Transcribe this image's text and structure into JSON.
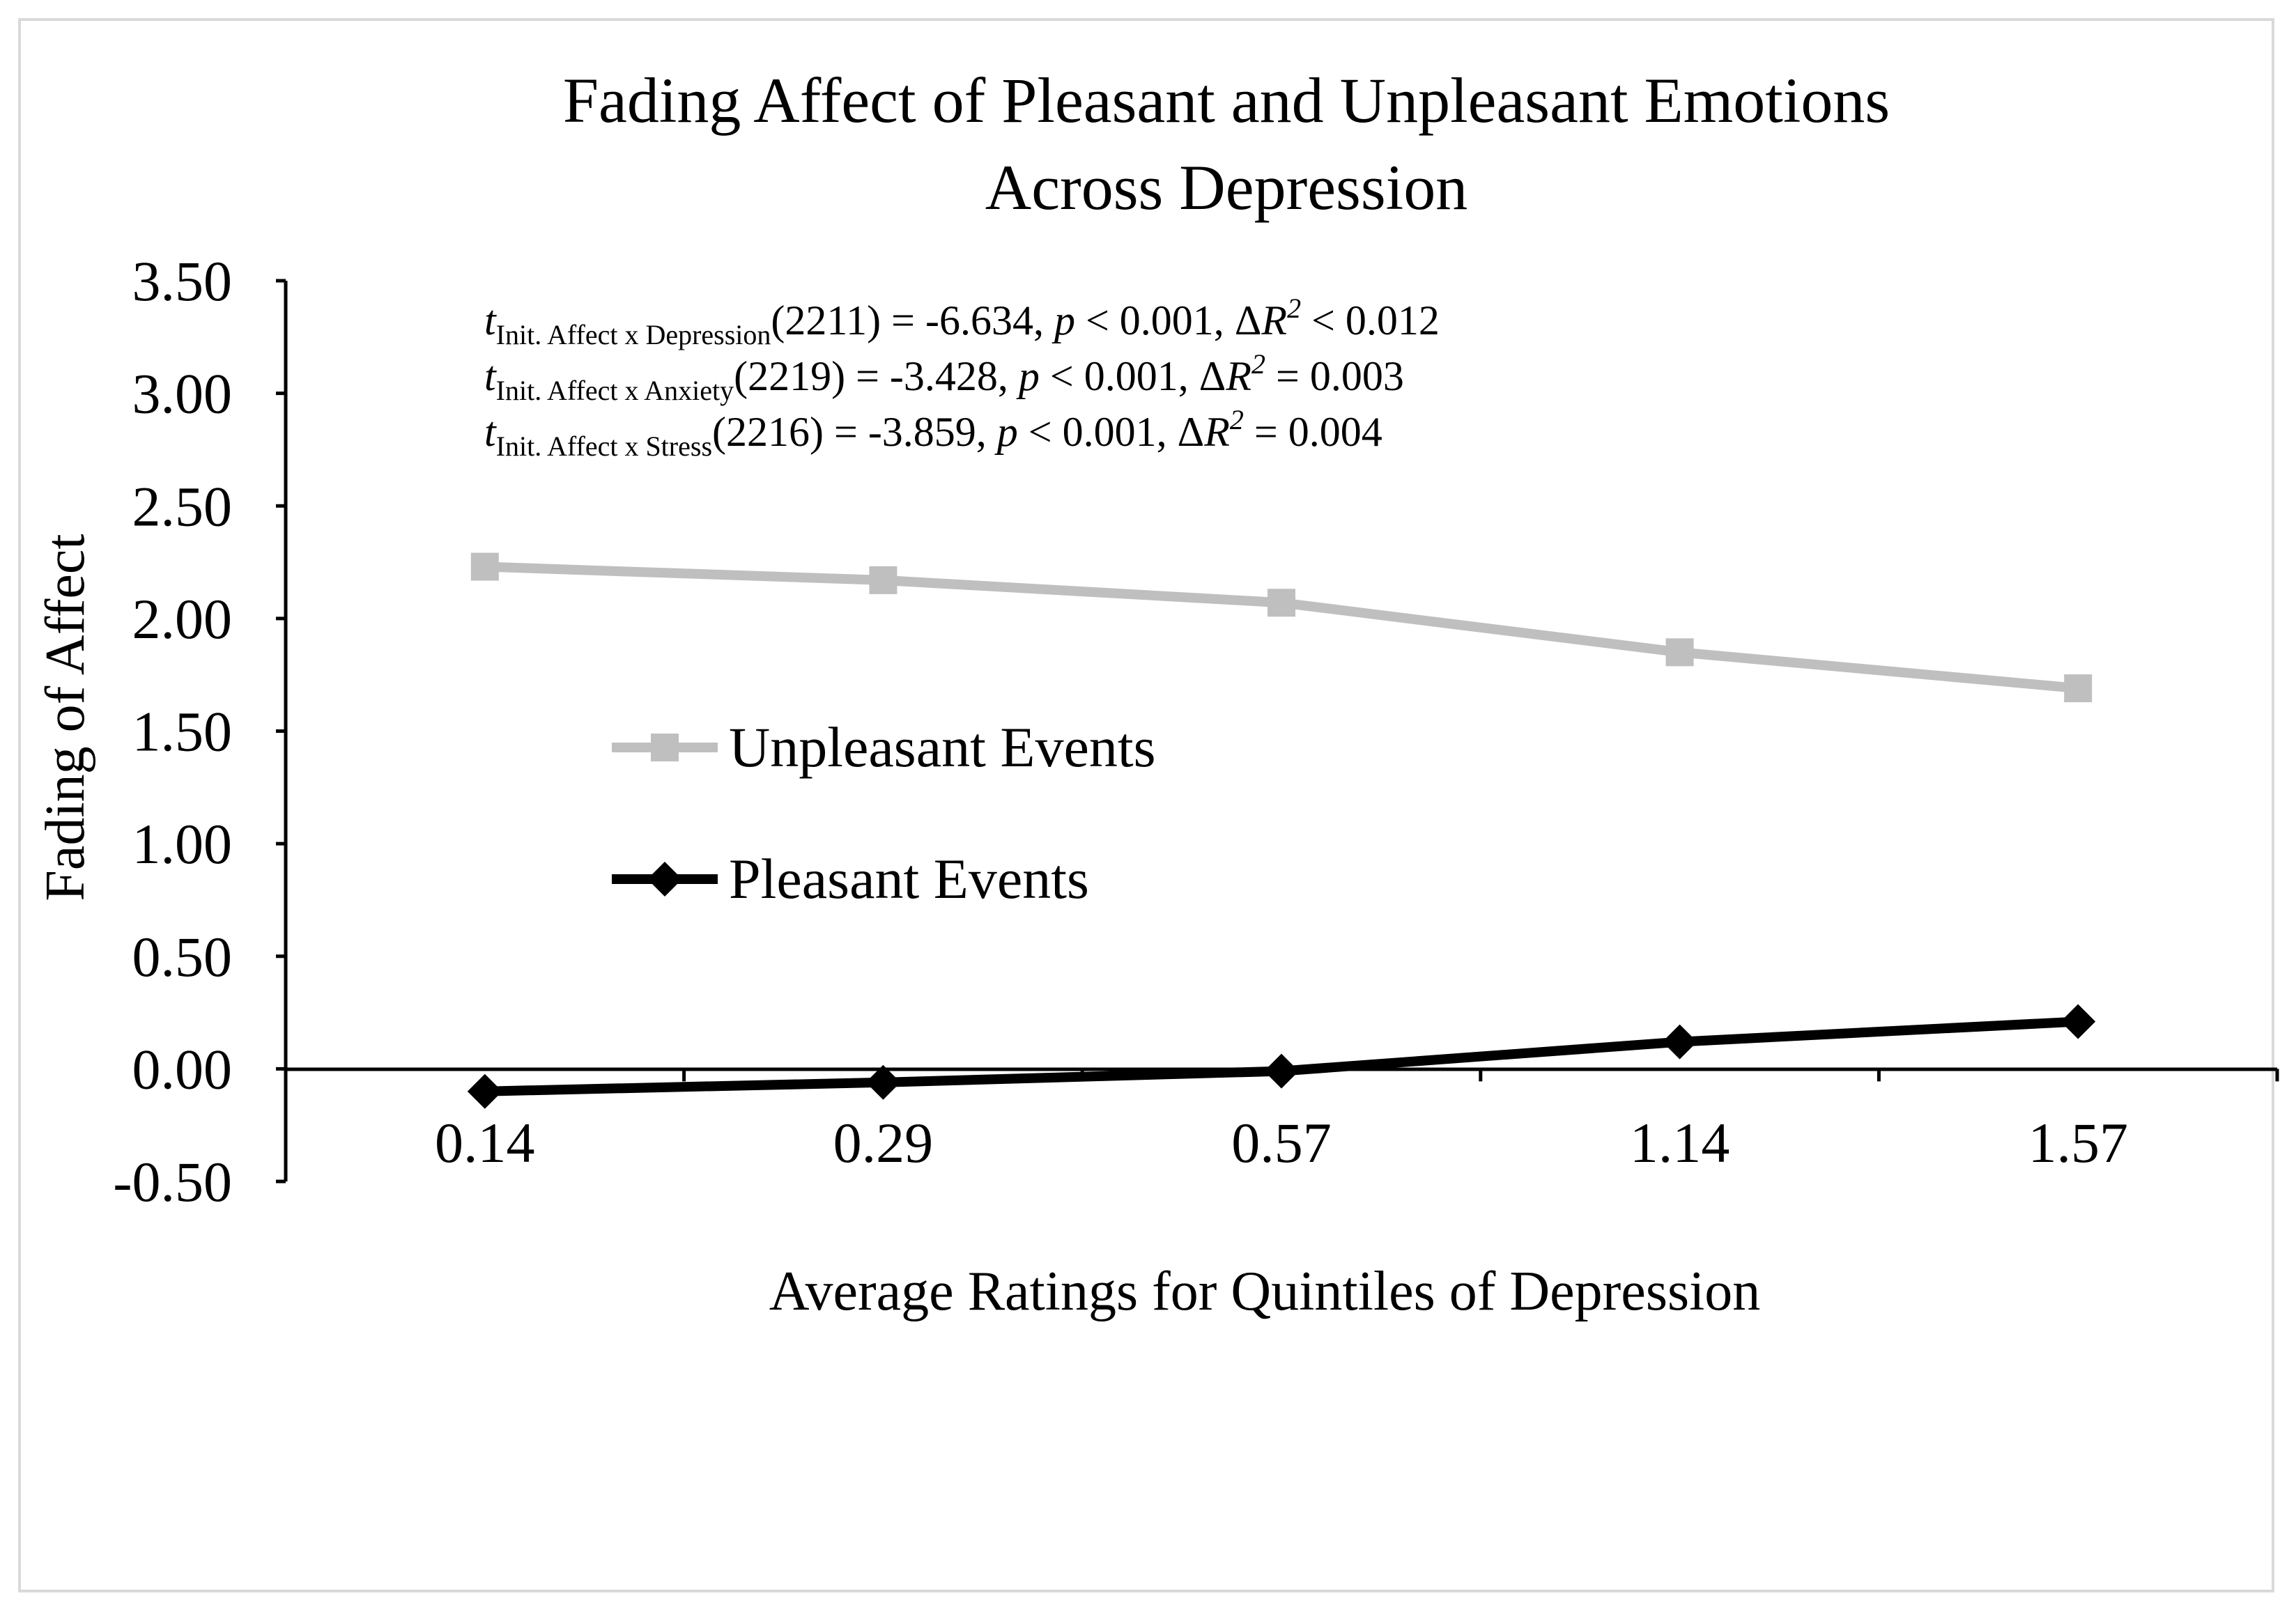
{
  "chart_data": {
    "type": "line",
    "title_lines": [
      "Fading Affect of Pleasant and Unpleasant Emotions",
      "Across Depression"
    ],
    "xlabel": "Average Ratings for Quintiles of Depression",
    "ylabel": "Fading of Affect",
    "categories": [
      "0.14",
      "0.29",
      "0.57",
      "1.14",
      "1.57"
    ],
    "ylim": [
      -0.5,
      3.5
    ],
    "yticks": [
      "3.50",
      "3.00",
      "2.50",
      "2.00",
      "1.50",
      "1.00",
      "0.50",
      "0.00",
      "-0.50"
    ],
    "grid": false,
    "legend_position": "center-left",
    "series": [
      {
        "name": "Unpleasant Events",
        "values": [
          2.23,
          2.17,
          2.07,
          1.85,
          1.69
        ],
        "color": "#bfbfbf",
        "marker": "square"
      },
      {
        "name": "Pleasant Events",
        "values": [
          -0.1,
          -0.06,
          -0.01,
          0.12,
          0.21
        ],
        "color": "#000000",
        "marker": "diamond"
      }
    ],
    "annotations": [
      {
        "t_sub": "Init. Affect x Depression",
        "df": "(2211) = -6.634, ",
        "p": "< 0.001, ",
        "dr": "< 0.012"
      },
      {
        "t_sub": "Init. Affect x Anxiety",
        "df": "(2219) = -3.428, ",
        "p": "< 0.001, ",
        "dr": "= 0.003"
      },
      {
        "t_sub": "Init. Affect x Stress",
        "df": "(2216) = -3.859, ",
        "p": "< 0.001, ",
        "dr": "= 0.004"
      }
    ]
  }
}
